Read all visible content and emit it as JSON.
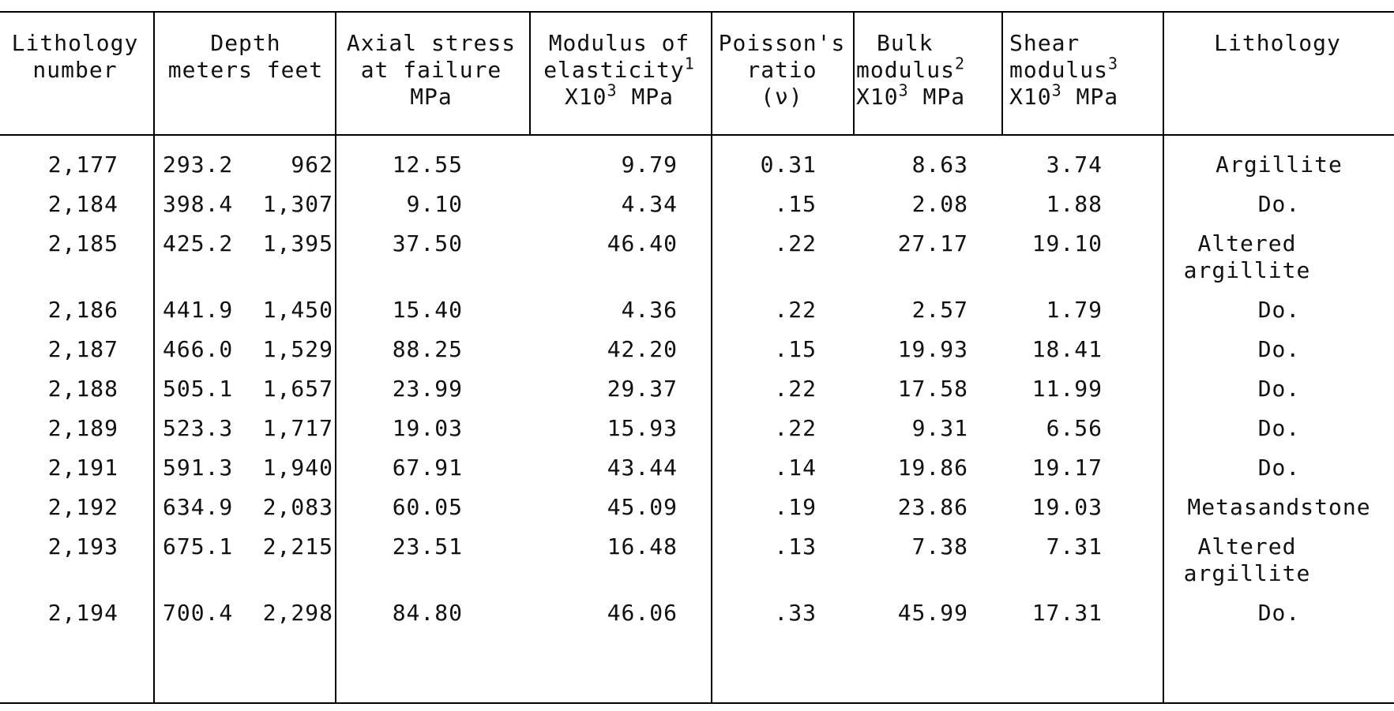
{
  "headers": {
    "lithology_number": "Lithology\nnumber",
    "depth": "Depth",
    "depth_units": "meters feet",
    "axial": "Axial stress\nat failure\nMPa",
    "modulus_elasticity_a": "Modulus of",
    "modulus_elasticity_b": "elasticity",
    "modulus_elasticity_sup": "1",
    "modulus_elasticity_c": "X10",
    "modulus_elasticity_c_sup": "3",
    "modulus_elasticity_d": " MPa",
    "poisson": "Poisson's\nratio\n(ν)",
    "bulk_a": "Bulk",
    "bulk_b": "modulus",
    "bulk_b_sup": "2",
    "bulk_c": "X10",
    "bulk_c_sup": "3",
    "bulk_d": " MPa",
    "shear_a": "Shear",
    "shear_b": "modulus",
    "shear_b_sup": "3",
    "shear_c": "X10",
    "shear_c_sup": "3",
    "shear_d": " MPa",
    "lithology": "Lithology"
  },
  "rows": [
    {
      "num": "2,177",
      "m": "293.2",
      "ft": "962",
      "axial": "12.55",
      "mod": "9.79",
      "poisson": "0.31",
      "bulk": "8.63",
      "shear": "3.74",
      "lith": "Argillite",
      "lith2": ""
    },
    {
      "num": "2,184",
      "m": "398.4",
      "ft": "1,307",
      "axial": "9.10",
      "mod": "4.34",
      "poisson": ".15",
      "bulk": "2.08",
      "shear": "1.88",
      "lith": "Do.",
      "lith2": ""
    },
    {
      "num": "2,185",
      "m": "425.2",
      "ft": "1,395",
      "axial": "37.50",
      "mod": "46.40",
      "poisson": ".22",
      "bulk": "27.17",
      "shear": "19.10",
      "lith": "Altered",
      "lith2": "argillite"
    },
    {
      "num": "2,186",
      "m": "441.9",
      "ft": "1,450",
      "axial": "15.40",
      "mod": "4.36",
      "poisson": ".22",
      "bulk": "2.57",
      "shear": "1.79",
      "lith": "Do.",
      "lith2": ""
    },
    {
      "num": "2,187",
      "m": "466.0",
      "ft": "1,529",
      "axial": "88.25",
      "mod": "42.20",
      "poisson": ".15",
      "bulk": "19.93",
      "shear": "18.41",
      "lith": "Do.",
      "lith2": ""
    },
    {
      "num": "2,188",
      "m": "505.1",
      "ft": "1,657",
      "axial": "23.99",
      "mod": "29.37",
      "poisson": ".22",
      "bulk": "17.58",
      "shear": "11.99",
      "lith": "Do.",
      "lith2": ""
    },
    {
      "num": "2,189",
      "m": "523.3",
      "ft": "1,717",
      "axial": "19.03",
      "mod": "15.93",
      "poisson": ".22",
      "bulk": "9.31",
      "shear": "6.56",
      "lith": "Do.",
      "lith2": ""
    },
    {
      "num": "2,191",
      "m": "591.3",
      "ft": "1,940",
      "axial": "67.91",
      "mod": "43.44",
      "poisson": ".14",
      "bulk": "19.86",
      "shear": "19.17",
      "lith": "Do.",
      "lith2": ""
    },
    {
      "num": "2,192",
      "m": "634.9",
      "ft": "2,083",
      "axial": "60.05",
      "mod": "45.09",
      "poisson": ".19",
      "bulk": "23.86",
      "shear": "19.03",
      "lith": "Metasandstone",
      "lith2": ""
    },
    {
      "num": "2,193",
      "m": "675.1",
      "ft": "2,215",
      "axial": "23.51",
      "mod": "16.48",
      "poisson": ".13",
      "bulk": "7.38",
      "shear": "7.31",
      "lith": "Altered",
      "lith2": "argillite"
    },
    {
      "num": "2,194",
      "m": "700.4",
      "ft": "2,298",
      "axial": "84.80",
      "mod": "46.06",
      "poisson": ".33",
      "bulk": "45.99",
      "shear": "17.31",
      "lith": "Do.",
      "lith2": ""
    }
  ]
}
